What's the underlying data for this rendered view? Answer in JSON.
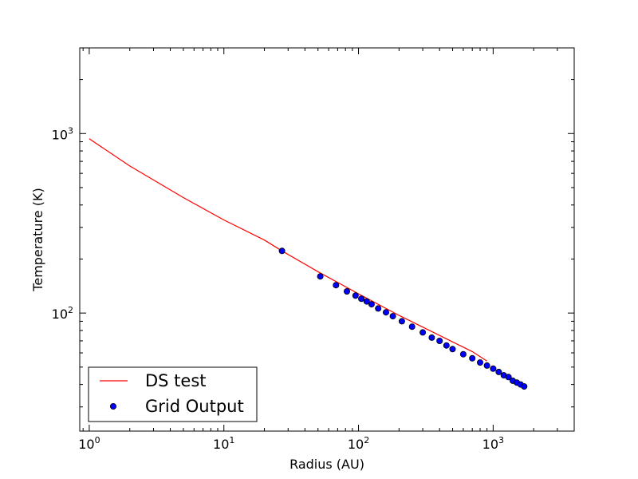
{
  "chart_data": {
    "type": "line+scatter",
    "title": "",
    "xlabel": "Radius (AU)",
    "ylabel": "Temperature (K)",
    "xscale": "log",
    "yscale": "log",
    "xlim": [
      0.85,
      4000
    ],
    "ylim": [
      22,
      3000
    ],
    "x_ticks": [
      {
        "value": 1,
        "base": "10",
        "exp": "0"
      },
      {
        "value": 10,
        "base": "10",
        "exp": "1"
      },
      {
        "value": 100,
        "base": "10",
        "exp": "2"
      },
      {
        "value": 1000,
        "base": "10",
        "exp": "3"
      }
    ],
    "y_ticks": [
      {
        "value": 100,
        "base": "10",
        "exp": "2"
      },
      {
        "value": 1000,
        "base": "10",
        "exp": "3"
      }
    ],
    "grid": false,
    "legend_position": "lower-left",
    "series": [
      {
        "name": "DS test",
        "kind": "line",
        "color": "#ff0000",
        "x": [
          1,
          2,
          5,
          10,
          20,
          27,
          50,
          100,
          200,
          400,
          700,
          900
        ],
        "y": [
          935,
          660,
          440,
          330,
          255,
          222,
          170,
          128,
          97,
          75,
          61,
          54
        ]
      },
      {
        "name": "Grid Output",
        "kind": "scatter",
        "color": "#0000ff",
        "edge_color": "#000000",
        "x": [
          27,
          52,
          68,
          82,
          95,
          105,
          115,
          125,
          140,
          160,
          180,
          210,
          250,
          300,
          350,
          400,
          450,
          500,
          600,
          700,
          800,
          900,
          1000,
          1100,
          1200,
          1300,
          1400,
          1500,
          1600,
          1700
        ],
        "y": [
          222,
          160,
          143,
          132,
          125,
          120,
          116,
          112,
          106,
          101,
          96,
          90,
          84,
          78,
          73,
          70,
          66,
          63,
          59,
          56,
          53,
          51,
          49,
          47,
          45,
          44,
          42,
          41,
          40,
          39
        ]
      }
    ]
  }
}
